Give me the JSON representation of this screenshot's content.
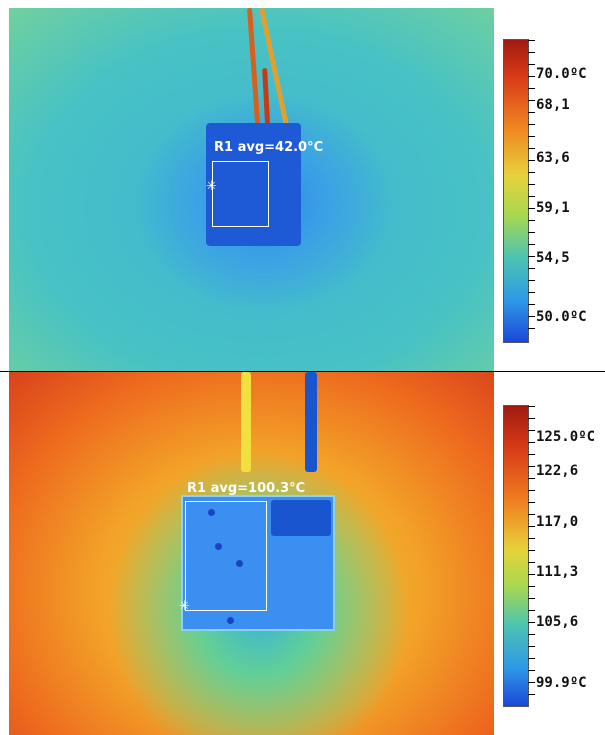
{
  "top_panel": {
    "roi_label": "R1 avg=42.0°C",
    "scale_labels": [
      "70.0ºC",
      "68,1",
      "63,6",
      "59,1",
      "54,5",
      "50.0ºC"
    ]
  },
  "bottom_panel": {
    "roi_label": "R1 avg=100.3°C",
    "scale_labels": [
      "125.0ºC",
      "122,6",
      "117,0",
      "111,3",
      "105,6",
      "99.9ºC"
    ]
  },
  "marker_glyph": "✳",
  "colors": {
    "roi_box": "#ffffff",
    "cold": "#1a48d8",
    "hot": "#a01a10"
  }
}
